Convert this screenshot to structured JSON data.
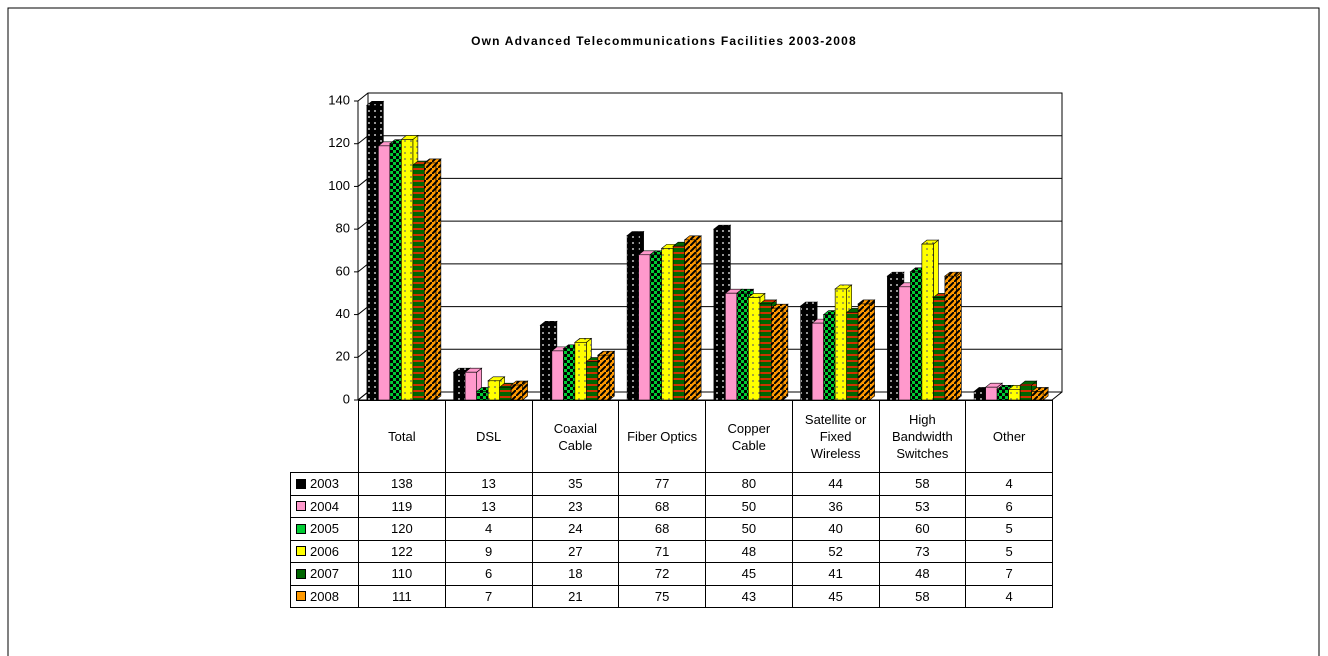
{
  "chart_data": {
    "type": "bar",
    "title": "Own Advanced Telecommunications Facilities 2003-2008",
    "categories": [
      "Total",
      "DSL",
      "Coaxial Cable",
      "Fiber Optics",
      "Copper Cable",
      "Satellite or Fixed Wireless",
      "High Bandwidth Switches",
      "Other"
    ],
    "series": [
      {
        "name": "2003",
        "color": "#000000",
        "values": [
          138,
          13,
          35,
          77,
          80,
          44,
          58,
          4
        ]
      },
      {
        "name": "2004",
        "color": "#ff99cc",
        "values": [
          119,
          13,
          23,
          68,
          50,
          36,
          53,
          6
        ]
      },
      {
        "name": "2005",
        "color": "#00cc33",
        "values": [
          120,
          4,
          24,
          68,
          50,
          40,
          60,
          5
        ]
      },
      {
        "name": "2006",
        "color": "#ffff00",
        "values": [
          122,
          9,
          27,
          71,
          48,
          52,
          73,
          5
        ]
      },
      {
        "name": "2007",
        "color": "#006600",
        "values": [
          110,
          6,
          18,
          72,
          45,
          41,
          48,
          7
        ]
      },
      {
        "name": "2008",
        "color": "#ff9900",
        "values": [
          111,
          7,
          21,
          75,
          43,
          45,
          58,
          4
        ]
      }
    ],
    "ylim": [
      0,
      140
    ],
    "yticks": [
      0,
      20,
      40,
      60,
      80,
      100,
      120,
      140
    ],
    "grid": true
  }
}
